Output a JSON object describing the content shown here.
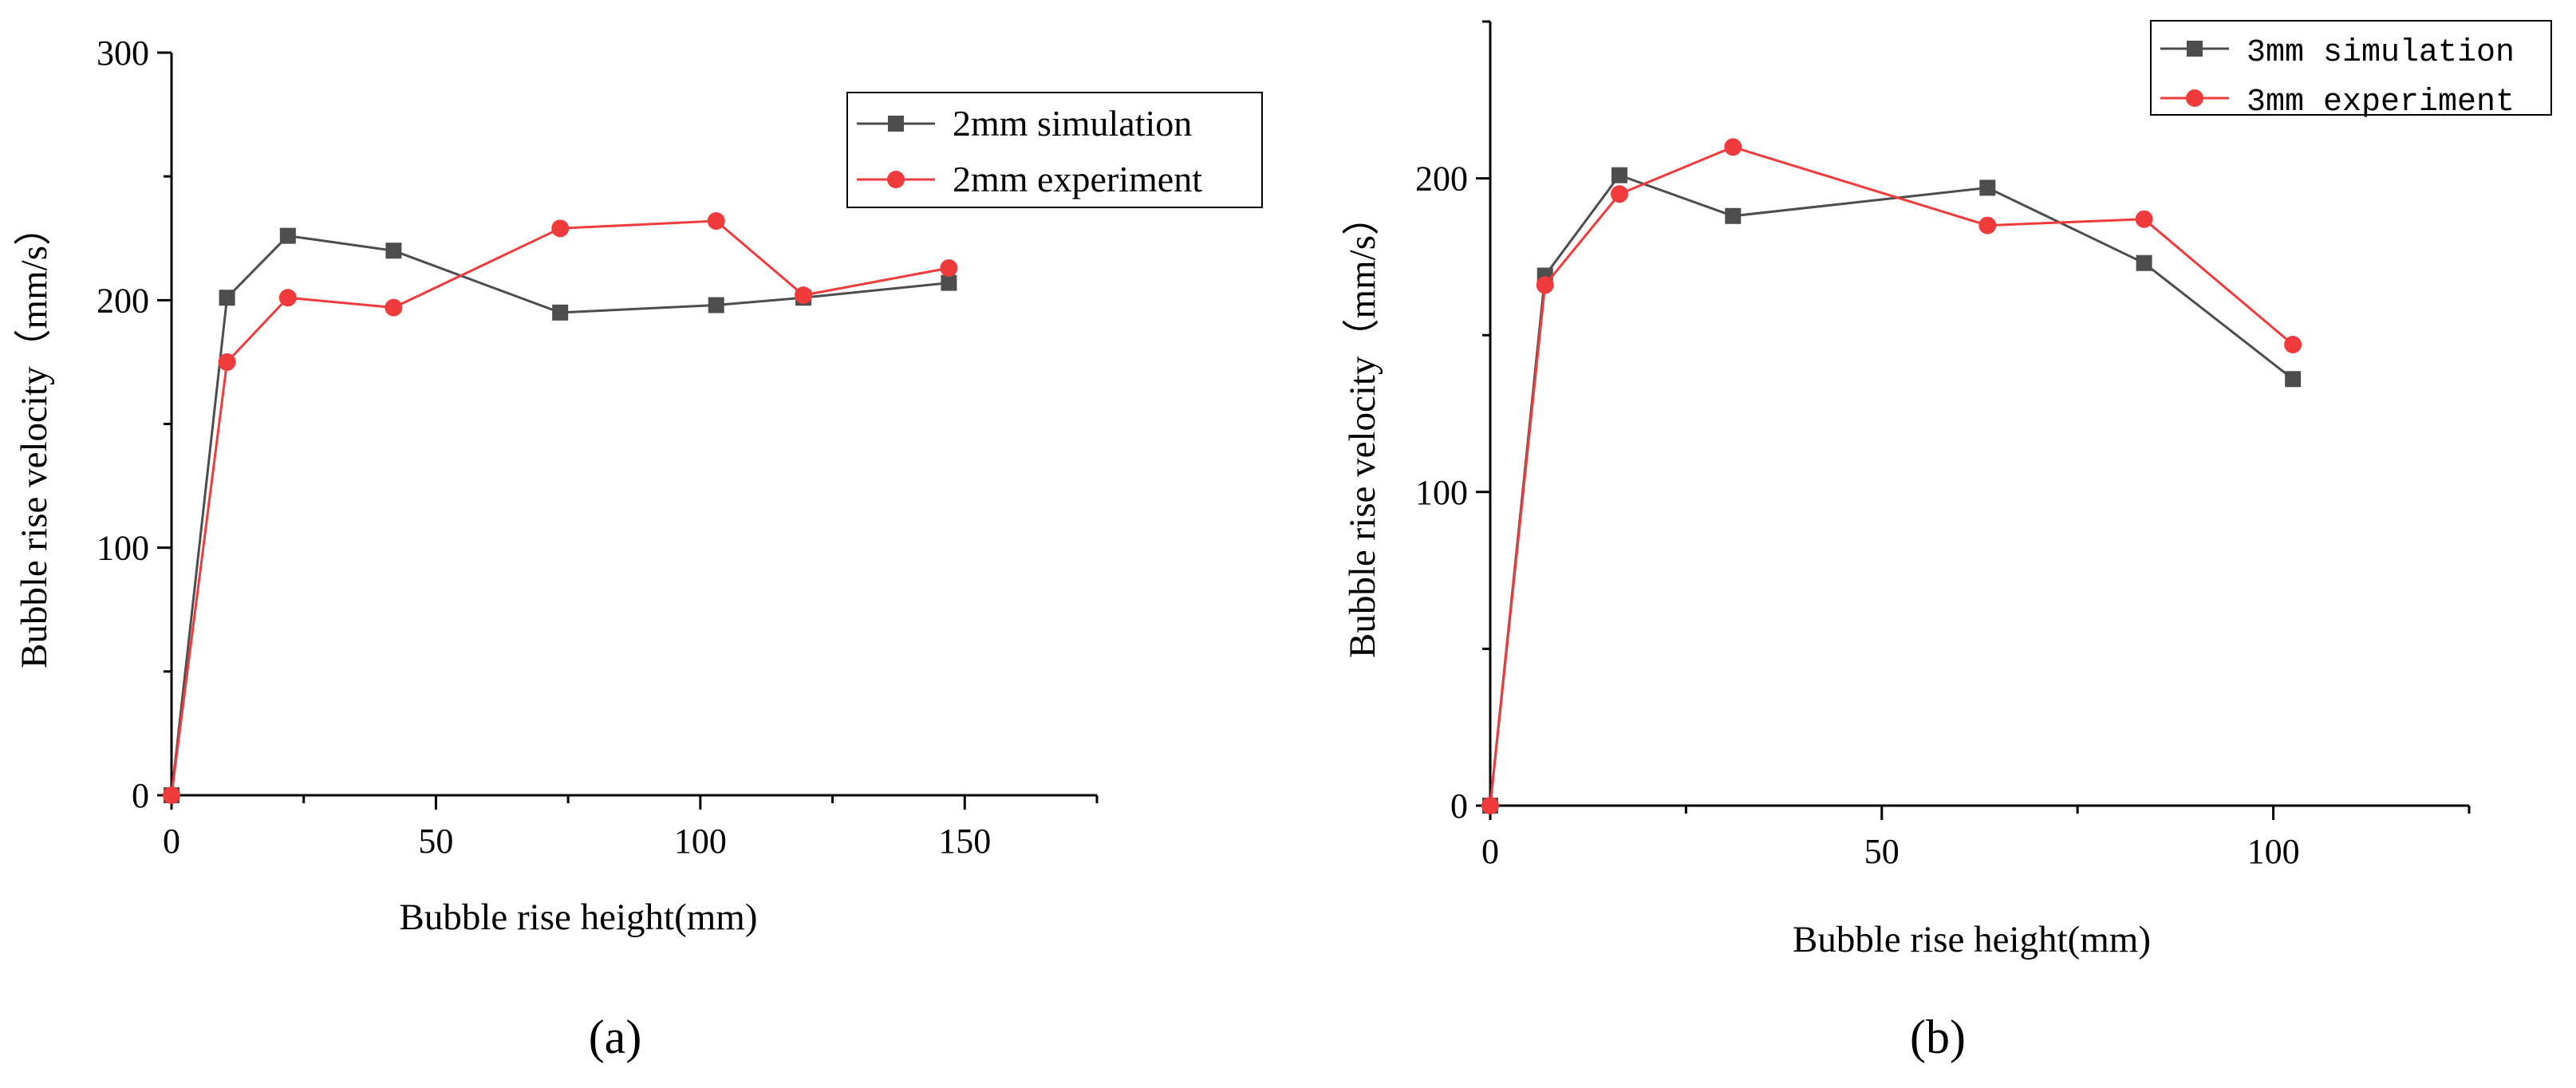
{
  "chart_data": [
    {
      "id": "a",
      "type": "line",
      "panel_label": "(a)",
      "xlabel": "Bubble rise height(mm)",
      "ylabel": "Bubble rise velocity（mm/s）",
      "xlim": [
        0,
        175
      ],
      "ylim": [
        0,
        300
      ],
      "xticks": [
        0,
        50,
        100,
        150
      ],
      "yticks": [
        0,
        100,
        200,
        300
      ],
      "legend_position": "top-right",
      "series": [
        {
          "name": "2mm simulation",
          "color": "#4d4d4d",
          "marker": "square",
          "x": [
            0,
            10.5,
            22,
            42,
            73.5,
            103,
            119.5,
            147
          ],
          "y": [
            0,
            201,
            226,
            220,
            195,
            198,
            201,
            207
          ]
        },
        {
          "name": "2mm experiment",
          "color": "#ef3b3b",
          "marker": "circle",
          "x": [
            0,
            10.5,
            22,
            42,
            73.5,
            103,
            119.5,
            147
          ],
          "y": [
            0,
            175,
            201,
            197,
            229,
            232,
            202,
            213
          ]
        }
      ]
    },
    {
      "id": "b",
      "type": "line",
      "panel_label": "(b)",
      "xlabel": "Bubble rise height(mm)",
      "ylabel": "Bubble rise velocity（mm/s）",
      "xlim": [
        0,
        125
      ],
      "ylim": [
        0,
        250
      ],
      "xticks": [
        0,
        50,
        100
      ],
      "yticks": [
        0,
        100,
        200
      ],
      "legend_position": "top-right",
      "series": [
        {
          "name": "3mm simulation",
          "color": "#4d4d4d",
          "marker": "square",
          "x": [
            0,
            7,
            16.5,
            31,
            63.5,
            83.5,
            102.5
          ],
          "y": [
            0,
            169,
            201,
            188,
            197,
            173,
            136
          ]
        },
        {
          "name": "3mm experiment",
          "color": "#ef3b3b",
          "marker": "circle",
          "x": [
            0,
            7,
            16.5,
            31,
            63.5,
            83.5,
            102.5
          ],
          "y": [
            0,
            166,
            195,
            210,
            185,
            187,
            147
          ]
        }
      ]
    }
  ]
}
